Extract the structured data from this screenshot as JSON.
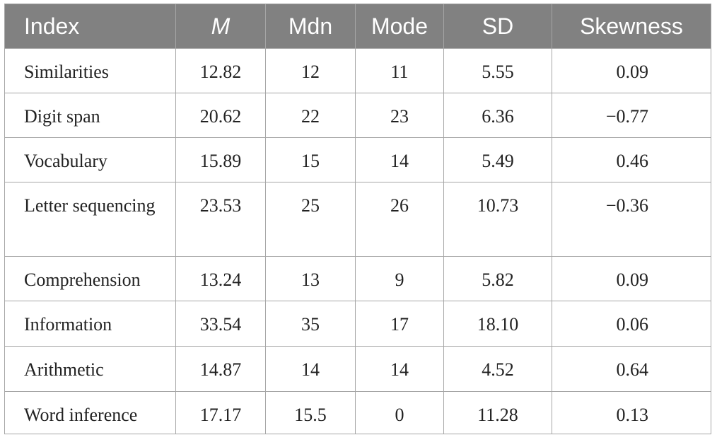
{
  "table": {
    "header": [
      "Index",
      "M",
      "Mdn",
      "Mode",
      "SD",
      "Skewness"
    ],
    "rows": [
      [
        "Similarities",
        "12.82",
        "12",
        "11",
        "5.55",
        "0.09"
      ],
      [
        "Digit span",
        "20.62",
        "22",
        "23",
        "6.36",
        "−0.77"
      ],
      [
        "Vocabulary",
        "15.89",
        "15",
        "14",
        "5.49",
        "0.46"
      ],
      [
        "Letter sequencing",
        "23.53",
        "25",
        "26",
        "10.73",
        "−0.36"
      ],
      [
        "Comprehension",
        "13.24",
        "13",
        "9",
        "5.82",
        "0.09"
      ],
      [
        "Information",
        "33.54",
        "35",
        "17",
        "18.10",
        "0.06"
      ],
      [
        "Arithmetic",
        "14.87",
        "14",
        "14",
        "4.52",
        "0.64"
      ],
      [
        "Word inference",
        "17.17",
        "15.5",
        "0",
        "11.28",
        "0.13"
      ]
    ]
  }
}
